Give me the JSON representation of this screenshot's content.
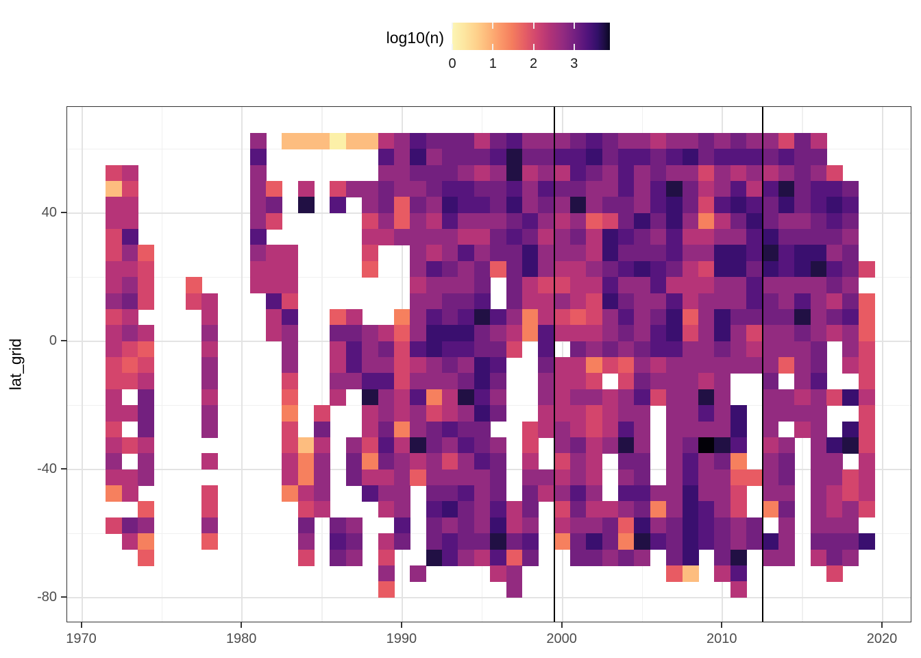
{
  "legend": {
    "title": "log10(n)",
    "tick_labels": [
      "0",
      "1",
      "2",
      "3"
    ],
    "tick_values": [
      0,
      1,
      2,
      3
    ],
    "scale_max": 3.88,
    "colormap": "magma-reversed"
  },
  "axes": {
    "y": {
      "label": "lat_grid",
      "tick_labels": [
        "40",
        "0",
        "-40",
        "-80"
      ]
    },
    "x": {
      "label": "",
      "tick_labels": [
        "1970",
        "1980",
        "1990",
        "2000",
        "2010",
        "2020"
      ]
    }
  },
  "chart_data": {
    "type": "heatmap",
    "title": "",
    "xlabel": "",
    "ylabel": "lat_grid",
    "x_ticks": [
      1970,
      1980,
      1990,
      2000,
      2010,
      2020
    ],
    "x_minor": [
      1975,
      1985,
      1995,
      2005,
      2015
    ],
    "y_ticks": [
      40,
      0,
      -40,
      -80
    ],
    "y_minor": [
      60,
      20,
      -20,
      -60
    ],
    "x_range": [
      1969.1,
      2021.8
    ],
    "y_range": [
      -87.9,
      73.2
    ],
    "grid_on": true,
    "legend_position": "top",
    "vlines": [
      1999.5,
      2012.5
    ],
    "vline_color": "#000000",
    "colors": {
      "panel_bg": "#ffffff",
      "grid_major": "#e3e3e3",
      "grid_minor": "#f0f0f0",
      "panel_border": "#333333",
      "tick_color": "#333333",
      "tick_label_color": "#4d4d4d"
    },
    "palette": {
      "A": {
        "hex": "#fcf0a8",
        "log10": 0.15
      },
      "B": {
        "hex": "#fdbd7f",
        "log10": 0.55
      },
      "C": {
        "hex": "#f6805e",
        "log10": 0.95
      },
      "D": {
        "hex": "#e85b63",
        "log10": 1.25
      },
      "E": {
        "hex": "#d4456c",
        "log10": 1.55
      },
      "F": {
        "hex": "#b63478",
        "log10": 1.85
      },
      "G": {
        "hex": "#932b80",
        "log10": 2.15
      },
      "H": {
        "hex": "#73207f",
        "log10": 2.45
      },
      "I": {
        "hex": "#56157d",
        "log10": 2.75
      },
      "J": {
        "hex": "#3a0f6f",
        "log10": 3.05
      },
      "K": {
        "hex": "#211044",
        "log10": 3.45
      },
      "L": {
        "hex": "#030108",
        "log10": 3.85
      }
    },
    "year_start": 1972,
    "year_step": 1,
    "lat_top": 65,
    "lat_step": 5,
    "grid": [
      ".........G.BBBABBFGIHHHFHIGGGHIHGGFGGHGHGGEHF...",
      ".........I.......IGJGHHHIKHHIIJHIIHIJHIIIHIHH...",
      "EF.......G.......GGHHHGFGKFGFIHGIGHGGEGFGFGHGE..",
      "BE.......GD.F.EGGHGGHIIHHIGIHHGGIGIKHFGIFIKHIIH.",
      "FF.......GH.K.I.GHDHGJIIHJGHGKGHHGIJHEIJIHJHIJI.",
      "FF.......GE.....EGDGFIGGGHIGFGDEHJHJGCFHJHGGHIH.",
      "EI.......I......FFGGGGFFHIHFGHFJIHGIFFGGIJHHHHG.",
      "EGD......GFF....E..GFGIGHHJGGGFJHHHIGGJJIKIJJGH.",
      "FFE......FFF....D..GIHGHDHJGFFGHIJIHFEJJHJIJKIHE",
      "FGE..D...FFF.......FGGGH.HFEEFFIGGIFFFGGIGGGGHG.",
      "GHE..EF...IE.......GGHHI.HFFGFEJHGGIFGGGIHGIGFHD",
      "EF....F...FI..DF..CGIHIKIGCFEDEGIGHJDGJHHHHKGHID",
      "FGF...G...FG..HHGFDGJJJHGFCIFFFGHGIJEGJGEGGHGFGD",
      "FED...F....G..FIGHEIJIIHHE.I.HGHGHIIGGHGFGGGH.GE",
      "EDE...G....G..FIGGEFGHGJI..HFFCEDGFGGGGGGGDGH.FE",
      "EEF...G....E..GGIIEGGGHJH..GFFE.EHGGGFG..H.GI..E",
      "F.H...F....D..F.KGFICFKIG..GFGGFGIEGGKG..GGFGEJF",
      "FFH...G....C.E..FGFGEFGJH..FFFEFGG.GGIGJ.GGGG..E",
      "E.H...G....E.H..FHCGHIHH..EFGFEFIG.GGGGJ.G.FG.JE",
      "FEF........EBF.GEIFKHGIHG.E.GHFGKG.GHLKI.FG.GJKE",
      "G.G...F....FCG.HCHGFGEGIH.F.EGF.HH.GIGHC.GH.GG.F",
      "FFG........FCG.HFFGDGGGGH.GGFGF.GH.GIGGDDGH.GGEF",
      "CF....E....CFG..IGG.HHIGH.HFGIG.IIGGJGGE.GG.GFEF",
      "..D...E.....EF...FG.IJHGIFH.EHFFGHCGJIGE.CH.GFGE",
      "EHG...G.....H.HG..I.HGHGJFG.FGGHDJGHJIHGH.G.GGG.",
      ".FC...D.....G.IH.FH.HIHHKHI.CHJHCKIHJIHGHJG.HHHJ",
      "..D.........E.HG.E..KIGFIDH..HHGHG.HJ.HK.GG.FHG.",
      ".................G.G....FG.........DB.FI.....E..",
      ".................D.......G.............F........"
    ]
  }
}
